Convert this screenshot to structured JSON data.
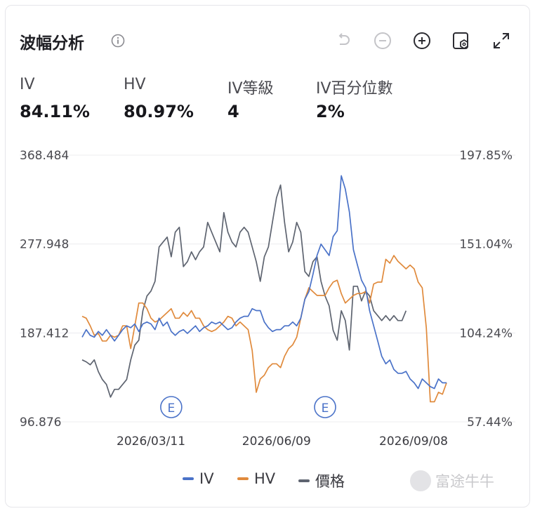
{
  "header": {
    "title": "波幅分析",
    "icons": [
      "info-icon",
      "undo-icon",
      "zoom-out-icon",
      "zoom-in-icon",
      "settings-icon",
      "fullscreen-icon"
    ]
  },
  "stats": [
    {
      "label": "IV",
      "value": "84.11%"
    },
    {
      "label": "HV",
      "value": "80.97%"
    },
    {
      "label": "IV等級",
      "value": "4"
    },
    {
      "label": "IV百分位數",
      "value": "2%"
    }
  ],
  "legend": [
    {
      "label": "IV",
      "color": "#4a72c8"
    },
    {
      "label": "HV",
      "color": "#e08a3c"
    },
    {
      "label": "價格",
      "color": "#5e6470"
    }
  ],
  "watermark": "富途牛牛",
  "chart_data": {
    "type": "line",
    "left_axis_ticks": [
      "368.484",
      "277.948",
      "187.412",
      "96.876"
    ],
    "right_axis_ticks": [
      "197.85%",
      "151.04%",
      "104.24%",
      "57.44%"
    ],
    "left_ylim": [
      96.876,
      368.484
    ],
    "right_ylim": [
      57.44,
      197.85
    ],
    "x_ticks": [
      {
        "label": "2026/03/11",
        "index": 17
      },
      {
        "label": "2026/06/09",
        "index": 48
      },
      {
        "label": "2026/09/08",
        "index": 80
      }
    ],
    "event_markers": [
      {
        "label": "E",
        "index": 22
      },
      {
        "label": "E",
        "index": 60
      }
    ],
    "grid": true,
    "legend_position": "bottom",
    "series": [
      {
        "name": "IV",
        "axis": "right",
        "color": "#4a72c8",
        "values": [
          102,
          106,
          103,
          102,
          105,
          103,
          106,
          103,
          100,
          103,
          106,
          108,
          107,
          109,
          105,
          109,
          110,
          109,
          106,
          112,
          108,
          110,
          105,
          103,
          105,
          106,
          104,
          106,
          108,
          105,
          107,
          108,
          110,
          109,
          110,
          108,
          106,
          107,
          110,
          112,
          113,
          113,
          117,
          116,
          116,
          110,
          107,
          105,
          106,
          106,
          108,
          108,
          110,
          108,
          112,
          122,
          126,
          135,
          145,
          151,
          148,
          145,
          155,
          158,
          187,
          180,
          168,
          148,
          140,
          132,
          128,
          116,
          108,
          100,
          92,
          88,
          90,
          85,
          83,
          83,
          84,
          80,
          78,
          75,
          80,
          78,
          76,
          75,
          80,
          78,
          78
        ]
      },
      {
        "name": "HV",
        "axis": "right",
        "color": "#e08a3c",
        "values": [
          113,
          112,
          108,
          103,
          104,
          100,
          100,
          103,
          102,
          103,
          108,
          108,
          96,
          108,
          120,
          120,
          117,
          112,
          110,
          111,
          113,
          115,
          117,
          112,
          112,
          115,
          113,
          116,
          112,
          112,
          108,
          106,
          105,
          106,
          108,
          110,
          113,
          112,
          108,
          110,
          108,
          106,
          95,
          73,
          80,
          82,
          86,
          88,
          88,
          86,
          92,
          96,
          98,
          102,
          112,
          122,
          128,
          126,
          124,
          124,
          124,
          128,
          131,
          132,
          125,
          120,
          122,
          124,
          125,
          125,
          126,
          120,
          130,
          131,
          131,
          143,
          141,
          145,
          142,
          140,
          138,
          140,
          138,
          131,
          128,
          107,
          68,
          68,
          73,
          72,
          78
        ]
      },
      {
        "name": "價格",
        "axis": "left",
        "color": "#5e6470",
        "values": [
          160,
          158,
          155,
          160,
          148,
          140,
          135,
          122,
          130,
          130,
          135,
          140,
          160,
          175,
          180,
          210,
          225,
          230,
          240,
          275,
          280,
          285,
          265,
          290,
          295,
          255,
          260,
          270,
          262,
          270,
          275,
          300,
          290,
          280,
          270,
          310,
          290,
          280,
          275,
          290,
          295,
          290,
          275,
          260,
          240,
          265,
          275,
          300,
          325,
          338,
          300,
          270,
          280,
          300,
          290,
          250,
          245,
          260,
          265,
          240,
          225,
          215,
          190,
          180,
          210,
          200,
          170,
          235,
          235,
          220,
          230,
          225,
          210,
          205,
          200,
          205,
          200,
          205,
          200,
          200,
          210
        ]
      }
    ]
  }
}
